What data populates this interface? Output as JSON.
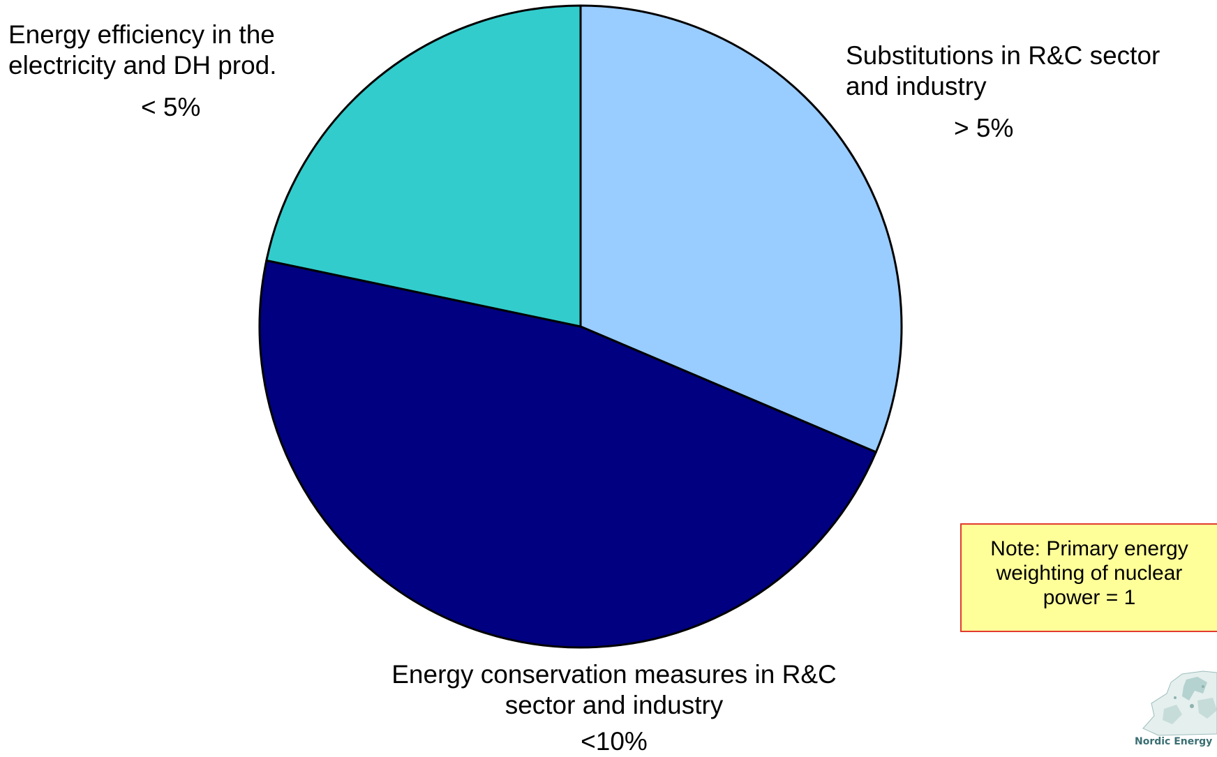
{
  "chart_data": {
    "type": "pie",
    "start": "12 o'clock",
    "direction": "clockwise",
    "slices": [
      {
        "label": "Substitutions in R&C sector and industry",
        "value_text": "> 5%",
        "share": 0.314,
        "color": "#99ccff"
      },
      {
        "label": "Energy conservation measures in R&C sector and industry",
        "value_text": "<10%",
        "share": 0.469,
        "color": "#000080"
      },
      {
        "label": "Energy efficiency in the electricity and DH prod.",
        "value_text": "< 5%",
        "share": 0.217,
        "color": "#33cccc"
      }
    ],
    "labels": {
      "efficiency": {
        "name": "Energy efficiency in the electricity and DH prod.",
        "pct": "< 5%"
      },
      "substitution": {
        "name": "Substitutions in R&C sector and industry",
        "pct": "> 5%"
      },
      "conservation": {
        "name": "Energy conservation measures in R&C sector and industry",
        "pct": "<10%"
      }
    },
    "slice_outline_color": "#000000"
  },
  "note": {
    "line1": "Note: Primary energy",
    "line2": "weighting of nuclear",
    "line3": "power = 1",
    "background": "#ffff99",
    "border_color": "#e23a2e"
  },
  "logo": {
    "text": "Nordic Energy",
    "icon": "europe-map-icon"
  }
}
